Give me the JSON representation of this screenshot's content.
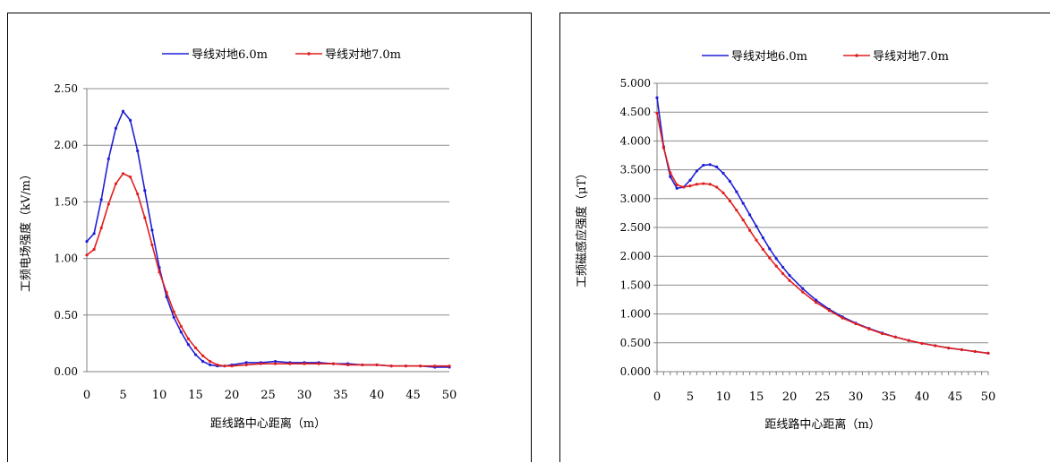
{
  "chart_data": [
    {
      "type": "line",
      "title": "",
      "xlabel": "距线路中心距离（m）",
      "ylabel": "工频电场强度（kV/m）",
      "xlim": [
        0,
        50
      ],
      "ylim": [
        0,
        2.5
      ],
      "xticks": [
        "0",
        "5",
        "10",
        "15",
        "20",
        "25",
        "30",
        "35",
        "40",
        "45",
        "50"
      ],
      "yticks": [
        "0.00",
        "0.50",
        "1.00",
        "1.50",
        "2.00",
        "2.50"
      ],
      "grid": "horizontal",
      "legend": "top",
      "series": [
        {
          "name": "导线对地6.0m",
          "color": "#1f1fd6",
          "x": [
            0,
            1,
            2,
            3,
            4,
            5,
            6,
            7,
            8,
            9,
            10,
            11,
            12,
            13,
            14,
            15,
            16,
            17,
            18,
            19,
            20,
            22,
            24,
            26,
            28,
            30,
            32,
            34,
            36,
            38,
            40,
            42,
            44,
            46,
            48,
            50
          ],
          "y": [
            1.15,
            1.22,
            1.52,
            1.88,
            2.15,
            2.3,
            2.22,
            1.95,
            1.6,
            1.25,
            0.92,
            0.66,
            0.48,
            0.35,
            0.24,
            0.15,
            0.09,
            0.06,
            0.05,
            0.05,
            0.06,
            0.08,
            0.08,
            0.09,
            0.08,
            0.08,
            0.08,
            0.07,
            0.07,
            0.06,
            0.06,
            0.05,
            0.05,
            0.05,
            0.04,
            0.04
          ]
        },
        {
          "name": "导线对地7.0m",
          "color": "#e11e1e",
          "x": [
            0,
            1,
            2,
            3,
            4,
            5,
            6,
            7,
            8,
            9,
            10,
            11,
            12,
            13,
            14,
            15,
            16,
            17,
            18,
            19,
            20,
            22,
            24,
            26,
            28,
            30,
            32,
            34,
            36,
            38,
            40,
            42,
            44,
            46,
            48,
            50
          ],
          "y": [
            1.03,
            1.08,
            1.27,
            1.48,
            1.66,
            1.75,
            1.72,
            1.57,
            1.36,
            1.12,
            0.88,
            0.7,
            0.53,
            0.4,
            0.29,
            0.21,
            0.14,
            0.09,
            0.06,
            0.05,
            0.05,
            0.06,
            0.07,
            0.07,
            0.07,
            0.07,
            0.07,
            0.07,
            0.06,
            0.06,
            0.06,
            0.05,
            0.05,
            0.05,
            0.05,
            0.05
          ]
        }
      ]
    },
    {
      "type": "line",
      "title": "",
      "xlabel": "距线路中心距离（m）",
      "ylabel": "工频磁感应强度（μT）",
      "xlim": [
        0,
        50
      ],
      "ylim": [
        0,
        5
      ],
      "xticks": [
        "0",
        "5",
        "10",
        "15",
        "20",
        "25",
        "30",
        "35",
        "40",
        "45",
        "50"
      ],
      "yticks": [
        "0.000",
        "0.500",
        "1.000",
        "1.500",
        "2.000",
        "2.500",
        "3.000",
        "3.500",
        "4.000",
        "4.500",
        "5.000"
      ],
      "grid": "horizontal",
      "legend": "top",
      "series": [
        {
          "name": "导线对地6.0m",
          "color": "#1f1fd6",
          "x": [
            0,
            1,
            2,
            3,
            4,
            5,
            6,
            7,
            8,
            9,
            10,
            11,
            12,
            13,
            14,
            15,
            16,
            17,
            18,
            19,
            20,
            22,
            24,
            26,
            28,
            30,
            32,
            34,
            36,
            38,
            40,
            42,
            44,
            46,
            48,
            50
          ],
          "y": [
            4.75,
            3.9,
            3.38,
            3.18,
            3.2,
            3.32,
            3.48,
            3.58,
            3.59,
            3.55,
            3.44,
            3.3,
            3.12,
            2.92,
            2.72,
            2.52,
            2.32,
            2.13,
            1.96,
            1.81,
            1.67,
            1.44,
            1.24,
            1.08,
            0.95,
            0.84,
            0.75,
            0.67,
            0.6,
            0.54,
            0.49,
            0.45,
            0.41,
            0.38,
            0.35,
            0.32
          ]
        },
        {
          "name": "导线对地7.0m",
          "color": "#e11e1e",
          "x": [
            0,
            1,
            2,
            3,
            4,
            5,
            6,
            7,
            8,
            9,
            10,
            11,
            12,
            13,
            14,
            15,
            16,
            17,
            18,
            19,
            20,
            22,
            24,
            26,
            28,
            30,
            32,
            34,
            36,
            38,
            40,
            42,
            44,
            46,
            48,
            50
          ],
          "y": [
            4.48,
            3.88,
            3.45,
            3.24,
            3.2,
            3.22,
            3.25,
            3.26,
            3.25,
            3.2,
            3.1,
            2.96,
            2.8,
            2.63,
            2.45,
            2.28,
            2.12,
            1.97,
            1.83,
            1.7,
            1.58,
            1.38,
            1.2,
            1.06,
            0.93,
            0.83,
            0.74,
            0.66,
            0.6,
            0.54,
            0.49,
            0.45,
            0.41,
            0.38,
            0.35,
            0.32
          ]
        }
      ]
    }
  ]
}
